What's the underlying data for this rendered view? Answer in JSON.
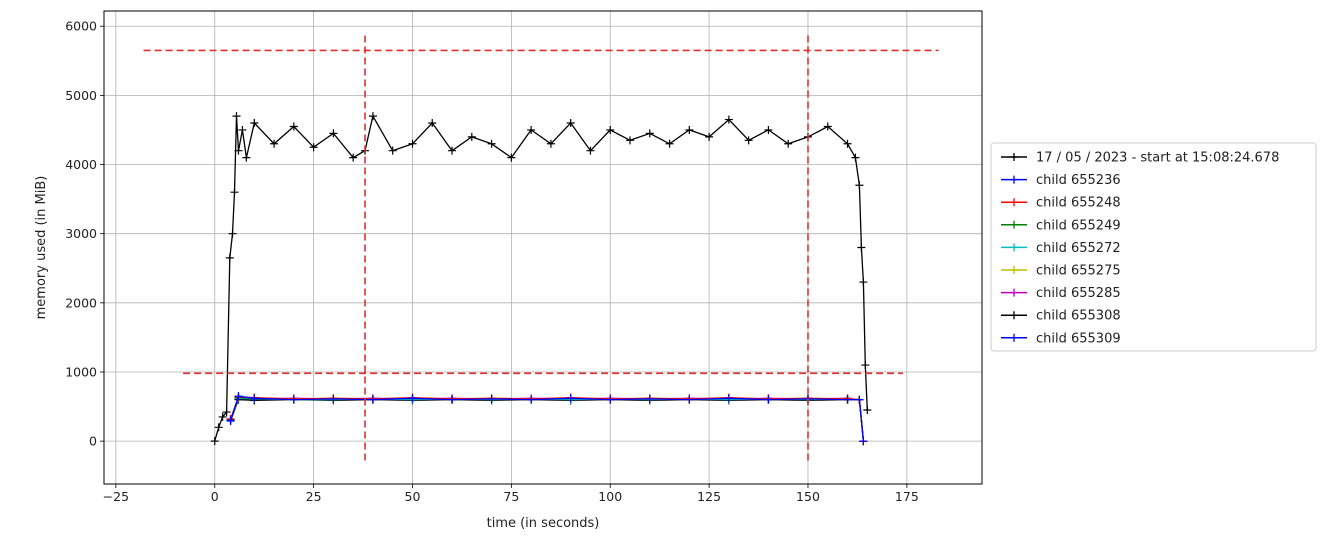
{
  "chart_data": {
    "type": "line",
    "title": "",
    "xlabel": "time (in seconds)",
    "ylabel": "memory used (in MiB)",
    "xlim": [
      -28,
      194
    ],
    "ylim": [
      -620,
      6220
    ],
    "xticks": [
      -25,
      0,
      25,
      50,
      75,
      100,
      125,
      150,
      175
    ],
    "yticks": [
      0,
      1000,
      2000,
      3000,
      4000,
      5000,
      6000
    ],
    "grid": true,
    "legend_position": "center-right, outside axes",
    "marker": "+",
    "series": [
      {
        "name": "17 / 05 / 2023 - start at 15:08:24.678",
        "color": "#000000",
        "x": [
          0,
          1,
          2,
          3,
          3.8,
          4.5,
          5,
          5.5,
          6,
          7,
          8,
          10,
          15,
          20,
          25,
          30,
          35,
          38,
          40,
          45,
          50,
          55,
          60,
          65,
          70,
          75,
          80,
          85,
          90,
          95,
          100,
          105,
          110,
          115,
          120,
          125,
          130,
          135,
          140,
          145,
          150,
          155,
          160,
          162,
          163,
          163.5,
          164,
          164.5,
          165
        ],
        "y": [
          0,
          200,
          350,
          420,
          2650,
          3000,
          3600,
          4700,
          4200,
          4500,
          4100,
          4600,
          4300,
          4550,
          4250,
          4450,
          4100,
          4200,
          4700,
          4200,
          4300,
          4600,
          4200,
          4400,
          4300,
          4100,
          4500,
          4300,
          4600,
          4200,
          4500,
          4350,
          4450,
          4300,
          4500,
          4400,
          4650,
          4350,
          4500,
          4300,
          4400,
          4550,
          4300,
          4100,
          3700,
          2800,
          2300,
          1100,
          450
        ]
      },
      {
        "name": "child 655236",
        "color": "#0000ff",
        "x": [
          4,
          6,
          10,
          20,
          30,
          40,
          50,
          60,
          70,
          80,
          90,
          100,
          110,
          120,
          130,
          140,
          150,
          160,
          163,
          164
        ],
        "y": [
          300,
          650,
          620,
          600,
          610,
          600,
          620,
          600,
          610,
          600,
          620,
          600,
          610,
          600,
          620,
          600,
          610,
          600,
          600,
          0
        ]
      },
      {
        "name": "child 655248",
        "color": "#ff0000",
        "x": [
          4,
          6,
          10,
          20,
          30,
          40,
          50,
          60,
          70,
          80,
          90,
          100,
          110,
          120,
          130,
          140,
          150,
          160,
          163,
          164
        ],
        "y": [
          320,
          640,
          630,
          610,
          620,
          610,
          630,
          610,
          620,
          610,
          630,
          610,
          620,
          610,
          630,
          610,
          620,
          610,
          600,
          0
        ]
      },
      {
        "name": "child 655249",
        "color": "#008000",
        "x": [
          4,
          6,
          10,
          20,
          30,
          40,
          50,
          60,
          70,
          80,
          90,
          100,
          110,
          120,
          130,
          140,
          150,
          160,
          163,
          164
        ],
        "y": [
          310,
          630,
          620,
          600,
          610,
          600,
          620,
          600,
          610,
          600,
          620,
          600,
          610,
          600,
          620,
          600,
          610,
          600,
          600,
          0
        ]
      },
      {
        "name": "child 655272",
        "color": "#00bfbf",
        "x": [
          4,
          6,
          10,
          20,
          30,
          40,
          50,
          60,
          70,
          80,
          90,
          100,
          110,
          120,
          130,
          140,
          150,
          160,
          163,
          164
        ],
        "y": [
          300,
          620,
          610,
          600,
          600,
          610,
          600,
          610,
          600,
          610,
          600,
          610,
          600,
          610,
          600,
          610,
          600,
          610,
          600,
          0
        ]
      },
      {
        "name": "child 655275",
        "color": "#bfbf00",
        "x": [
          4,
          6,
          10,
          20,
          30,
          40,
          50,
          60,
          70,
          80,
          90,
          100,
          110,
          120,
          130,
          140,
          150,
          160,
          163,
          164
        ],
        "y": [
          310,
          640,
          620,
          610,
          620,
          610,
          620,
          610,
          620,
          610,
          620,
          610,
          620,
          610,
          620,
          610,
          620,
          610,
          600,
          0
        ]
      },
      {
        "name": "child 655285",
        "color": "#bf00bf",
        "x": [
          4,
          6,
          10,
          20,
          30,
          40,
          50,
          60,
          70,
          80,
          90,
          100,
          110,
          120,
          130,
          140,
          150,
          160,
          163,
          164
        ],
        "y": [
          320,
          630,
          610,
          620,
          610,
          620,
          610,
          620,
          610,
          620,
          610,
          620,
          610,
          620,
          610,
          620,
          610,
          620,
          600,
          0
        ]
      },
      {
        "name": "child 655308",
        "color": "#000000",
        "x": [
          4,
          6,
          10,
          20,
          30,
          40,
          50,
          60,
          70,
          80,
          90,
          100,
          110,
          120,
          130,
          140,
          150,
          160,
          163,
          164
        ],
        "y": [
          300,
          600,
          590,
          600,
          590,
          600,
          590,
          600,
          590,
          600,
          590,
          600,
          590,
          600,
          590,
          600,
          590,
          600,
          600,
          0
        ]
      },
      {
        "name": "child 655309",
        "color": "#0000ff",
        "x": [
          4,
          6,
          10,
          20,
          30,
          40,
          50,
          60,
          70,
          80,
          90,
          100,
          110,
          120,
          130,
          140,
          150,
          160,
          163,
          164
        ],
        "y": [
          290,
          620,
          600,
          610,
          600,
          610,
          600,
          610,
          600,
          610,
          600,
          610,
          600,
          610,
          600,
          610,
          600,
          610,
          600,
          0
        ]
      }
    ],
    "reference_lines": [
      {
        "orientation": "horizontal",
        "y": 5650,
        "x_range": [
          -18,
          183
        ],
        "color": "#e03030",
        "style": "dashed"
      },
      {
        "orientation": "horizontal",
        "y": 980,
        "x_range": [
          -8,
          174
        ],
        "color": "#e03030",
        "style": "dashed"
      },
      {
        "orientation": "vertical",
        "x": 38,
        "y_range": [
          -280,
          5900
        ],
        "color": "#e03030",
        "style": "dashed"
      },
      {
        "orientation": "vertical",
        "x": 150,
        "y_range": [
          -280,
          5900
        ],
        "color": "#e03030",
        "style": "dashed"
      }
    ]
  }
}
